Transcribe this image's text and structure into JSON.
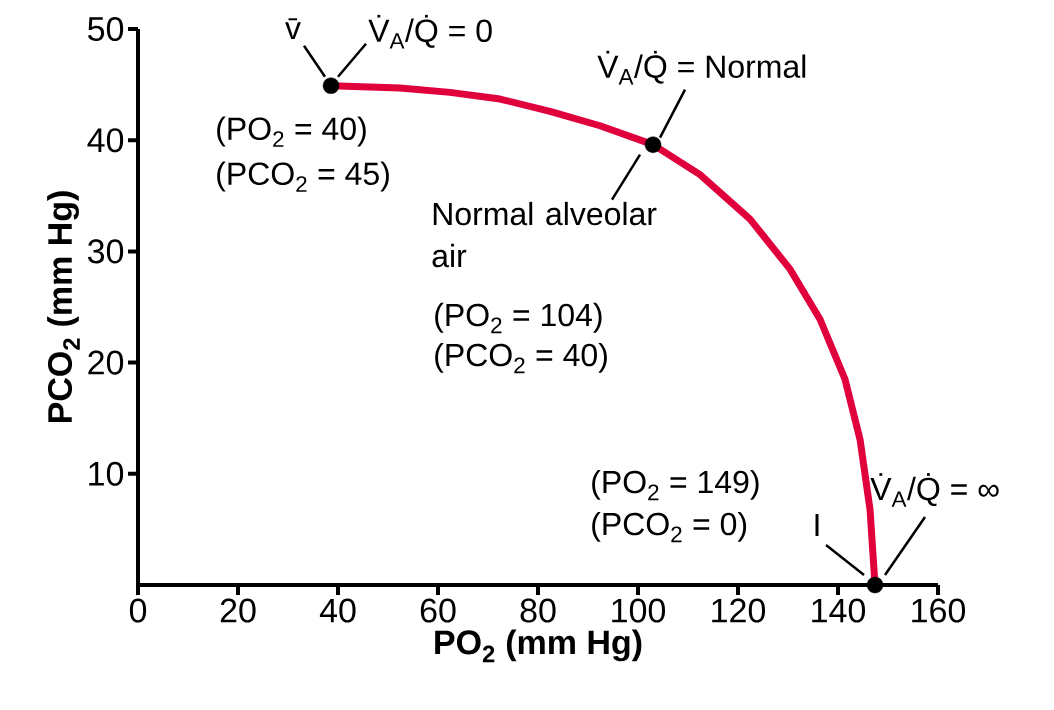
{
  "chart_data": {
    "type": "line",
    "xlabel": "PO$_{2}$ (mm Hg)",
    "ylabel": "PCO$_{2}$ (mm Hg)",
    "xlim": [
      0,
      160
    ],
    "xticks": [
      0,
      20,
      40,
      60,
      80,
      100,
      120,
      140,
      160
    ],
    "ylim": [
      0,
      50
    ],
    "yticks": [
      10,
      20,
      30,
      40,
      50
    ],
    "series": [
      {
        "type": "line",
        "color": "#e0003c",
        "marker": "none",
        "x": [
          38.6,
          52.4,
          62.4,
          72.4,
          82.4,
          92.4,
          103,
          112.4,
          122.4,
          130.4,
          136.4,
          141.4,
          144.4,
          146.4,
          147.4
        ],
        "values": [
          44.9,
          44.7,
          44.3,
          43.7,
          42.6,
          41.3,
          39.6,
          36.9,
          32.9,
          28.4,
          23.9,
          18.5,
          13.1,
          6.8,
          0
        ]
      },
      {
        "type": "scatter",
        "color": "#000000",
        "marker": "circle",
        "x": [
          38.6,
          103,
          147.4
        ],
        "values": [
          44.9,
          39.6,
          0
        ]
      }
    ],
    "annotations": [
      {
        "text": "v̄",
        "x": 38.6,
        "y": 44.9
      },
      {
        "text": "V̇$_{A}$/Q̇ = 0",
        "x": 38.6,
        "y": 44.9
      },
      {
        "text": "(PO$_{2}$ = 40)",
        "x": 38.6,
        "y": 44.9
      },
      {
        "text": "(PCO$_{2}$ = 45)",
        "x": 38.6,
        "y": 44.9
      },
      {
        "text": "V̇$_{A}$/Q̇ = Normal",
        "x": 103,
        "y": 39.6
      },
      {
        "text": "Normal alveolar air",
        "x": 103,
        "y": 39.6
      },
      "(PO$_{2}$ = 104)",
      "(PCO$_{2}$ = 40)",
      "(PO$_{2}$ = 149)",
      "(PCO$_{2}$ = 0)",
      {
        "text": "I",
        "x": 147.4,
        "y": 0
      },
      {
        "text": "V̇$_{A}$/Q̇ = ∞",
        "x": 147.4,
        "y": 0
      }
    ]
  }
}
